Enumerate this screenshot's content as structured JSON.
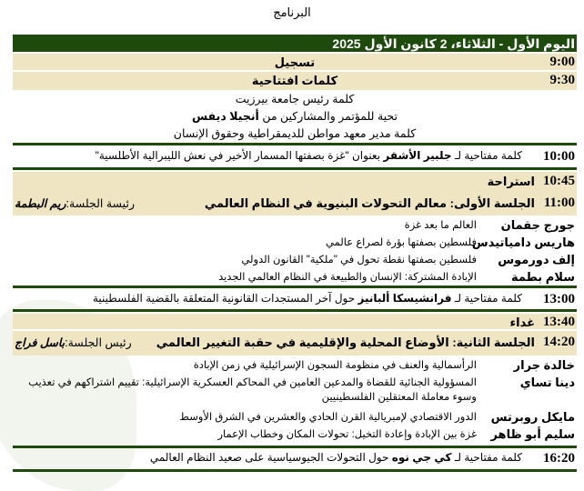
{
  "title": "البرنامج",
  "day_header": "اليوم الأول - الثلاثاء، 2 كانون الأول 2025",
  "colors": {
    "header": "#1e4a0e",
    "band": "#efe5c3"
  },
  "rows": {
    "registration": {
      "time": "9:00",
      "label": "تسجيل"
    },
    "opening": {
      "time": "9:30",
      "label": "كلمات افتتاحية",
      "lines": [
        "كلمة رئيس جامعة بيرزيت",
        "تحية للمؤتمر والمشاركين من",
        "أنجيلا ديفس",
        "كلمة مدير معهد مواطن للديمقراطية وحقوق الإنسان"
      ]
    },
    "keynote1": {
      "time": "10:00",
      "prefix": "كلمة مفتاحية لـ",
      "speaker": "جلبير الأشقر",
      "text": "بعنوان \"غزة بصفتها المسمار الأخير في نعش الليبرالية الأطلسية\""
    },
    "break": {
      "time": "10:45",
      "label": "استراحة"
    },
    "session1": {
      "time": "11:00",
      "label": "الجلسة الأولى: معالم التحولات البنيوية في النظام العالمي",
      "chair_label": "رئيسة الجلسة:",
      "chair": "ريم البطمة",
      "speakers": [
        {
          "name": "جورج جقمان",
          "talk": "العالم ما بعد غزة"
        },
        {
          "name": "هاريس دامياتيدس",
          "talk": "فلسطين بصفتها بؤرة لصراع عالمي"
        },
        {
          "name": "إلف دورموس",
          "talk": "فلسطين بصفتها نقطة تحول في \"ملكية\" القانون الدولي"
        },
        {
          "name": "سلام بطمة",
          "talk": "الإبادة المشتركة: الإنسان والطبيعة في النظام العالمي الجديد"
        }
      ]
    },
    "keynote2": {
      "time": "13:00",
      "prefix": "كلمة مفتاحية لـ",
      "speaker": "فرانشيسكا ألبانيز",
      "text": "حول آخر المستجدات القانونية المتعلقة بالقضية الفلسطينية"
    },
    "lunch": {
      "time": "13:40",
      "label": "غداء"
    },
    "session2": {
      "time": "14:20",
      "label": "الجلسة الثانية: الأوضاع المحلية والإقليمية في حقبة التغيير العالمي",
      "chair_label": "رئيس الجلسة:",
      "chair": "باسل فراج",
      "speakers": [
        {
          "name": "خالدة جرار",
          "talk": "الرأسمالية والعنف في منظومة السجون الإسرائيلية في زمن الإبادة"
        },
        {
          "name": "دينا تساي",
          "talk": "المسؤولية الجنائية للقضاة والمدعين العامين في المحاكم العسكرية الإسرائيلية: تقييم اشتراكهم في تعذيب وسوء معاملة المعتقلين الفلسطينيين"
        },
        {
          "name": "مايكل روبرتس",
          "talk": "الدور الاقتصادي لإمبريالية القرن الحادي والعشرين في الشرق الأوسط"
        },
        {
          "name": "سليم أبو ظاهر",
          "talk": "غزة بين الإبادة وإعادة التخيل: تحولات المكان وخطاب الإعمار"
        }
      ]
    },
    "keynote3": {
      "time": "16:20",
      "prefix": "كلمة مفتاحية لـ",
      "speaker": "كي جي نوه",
      "text": "حول التحولات الجيوسياسية على صعيد النظام العالمي"
    }
  }
}
